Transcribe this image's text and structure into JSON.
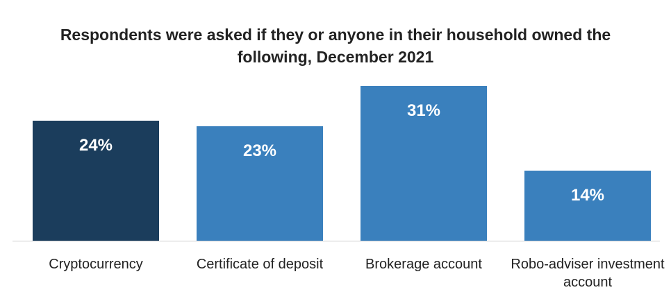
{
  "chart_data": {
    "type": "bar",
    "title": "Respondents were asked if they or anyone in their household owned the following, December 2021",
    "categories": [
      "Cryptocurrency",
      "Certificate of deposit",
      "Brokerage account",
      "Robo-adviser investment account"
    ],
    "values": [
      24,
      23,
      31,
      14
    ],
    "value_labels": [
      "24%",
      "23%",
      "31%",
      "14%"
    ],
    "colors": [
      "#1b3d5c",
      "#3a80bd",
      "#3a80bd",
      "#3a80bd"
    ]
  }
}
